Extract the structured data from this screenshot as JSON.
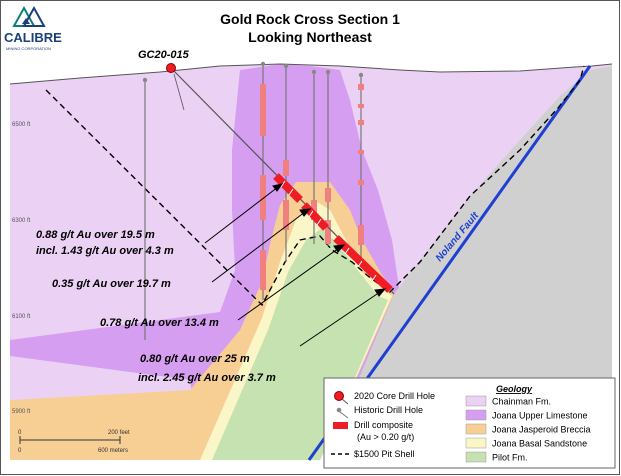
{
  "logo": {
    "name": "CALIBRE",
    "tagline": "MINING CORPORATION"
  },
  "title": {
    "line1": "Gold Rock Cross Section 1",
    "line2": "Looking Northeast"
  },
  "hole_label": "GC20-015",
  "fault_label": "Noland Fault",
  "elevations": [
    "6500 ft",
    "6300 ft",
    "6100 ft",
    "5900 ft"
  ],
  "intercepts": [
    "0.88 g/t Au over 19.5 m",
    "incl. 1.43 g/t Au over 4.3 m",
    "0.35 g/t Au over 19.7 m",
    "0.78 g/t Au over 13.4 m",
    "0.80 g/t Au over 25 m",
    "incl. 2.45 g/t Au over 3.7 m"
  ],
  "scale": {
    "zero_top": "0",
    "feet": "200 feet",
    "zero_bottom": "0",
    "meters": "600 meters"
  },
  "legend": {
    "core_hole": "2020 Core Drill Hole",
    "historic_hole": "Historic Drill Hole",
    "composite": "Drill composite",
    "composite_note": "(Au > 0.20 g/t)",
    "pit_shell": "$1500 Pit Shell",
    "geology_title": "Geology",
    "geology": [
      {
        "name": "Chainman Fm.",
        "color": "#ebd2f5"
      },
      {
        "name": "Joana Upper Limestone",
        "color": "#d69ef0"
      },
      {
        "name": "Joana Jasperoid Breccia",
        "color": "#f7cf95"
      },
      {
        "name": "Joana Basal Sandstone",
        "color": "#fbf6c8"
      },
      {
        "name": "Pilot Fm.",
        "color": "#c6e2b0"
      }
    ]
  },
  "colors": {
    "composite": "#ee1c24",
    "fault": "#1e3fd0",
    "historic_interval": "#f08080",
    "hanging_wall": "#d0d0d0"
  }
}
